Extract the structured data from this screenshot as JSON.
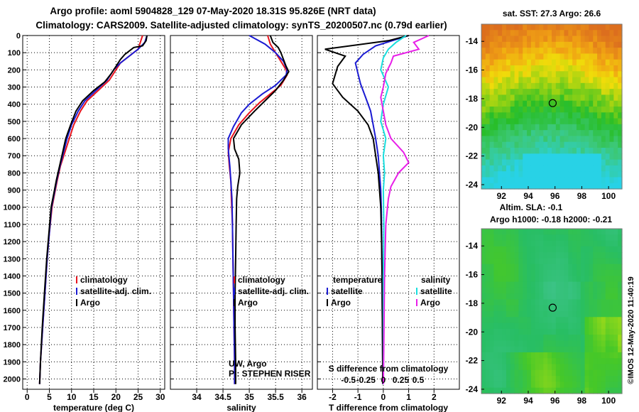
{
  "title_line1": "Argo profile: aoml 5904828_129 07-May-2020 18.31S 95.826E (NRT data)",
  "title_line2": "Climatology: CARS2009. Satellite-adjusted climatology: synTS_20200507.nc (0.79d earlier)",
  "colors": {
    "climatology": "#e8141e",
    "satellite": "#1a1ad2",
    "argo": "#000000",
    "sal_satellite": "#19dede",
    "sal_argo": "#e81ee8",
    "border": "#7a7a7a"
  },
  "chart_data": [
    {
      "type": "line",
      "xlabel": "temperature (deg C)",
      "xlim": [
        -1,
        31
      ],
      "ylim": [
        2060,
        0
      ],
      "xticks": [
        "0",
        "5",
        "10",
        "15",
        "20",
        "25",
        "30"
      ],
      "yticks": [
        "0",
        "100",
        "200",
        "300",
        "400",
        "500",
        "600",
        "700",
        "800",
        "900",
        "1000",
        "1100",
        "1200",
        "1300",
        "1400",
        "1500",
        "1600",
        "1700",
        "1800",
        "1900",
        "2000"
      ],
      "legend": [
        "climatology",
        "satellite-adj. clim.",
        "Argo"
      ],
      "series": [
        {
          "key": "climatology",
          "values": [
            [
              26,
              0
            ],
            [
              25.5,
              40
            ],
            [
              25,
              80
            ],
            [
              23,
              120
            ],
            [
              21,
              160
            ],
            [
              20,
              200
            ],
            [
              18.5,
              260
            ],
            [
              16,
              320
            ],
            [
              13.5,
              380
            ],
            [
              12,
              440
            ],
            [
              10.5,
              520
            ],
            [
              9.5,
              600
            ],
            [
              8.5,
              680
            ],
            [
              7.5,
              760
            ],
            [
              6.8,
              840
            ],
            [
              6.2,
              920
            ],
            [
              5.6,
              1000
            ],
            [
              5,
              1150
            ],
            [
              4.5,
              1300
            ],
            [
              4,
              1500
            ],
            [
              3.5,
              1700
            ],
            [
              3,
              1900
            ],
            [
              2.8,
              2030
            ]
          ]
        },
        {
          "key": "satellite",
          "values": [
            [
              27,
              0
            ],
            [
              26.5,
              40
            ],
            [
              25,
              80
            ],
            [
              23,
              120
            ],
            [
              21,
              160
            ],
            [
              19.5,
              200
            ],
            [
              18,
              260
            ],
            [
              15.5,
              320
            ],
            [
              13,
              380
            ],
            [
              11.5,
              440
            ],
            [
              10,
              520
            ],
            [
              9,
              600
            ],
            [
              8.2,
              680
            ],
            [
              7.4,
              760
            ],
            [
              6.7,
              840
            ],
            [
              6.1,
              920
            ],
            [
              5.5,
              1000
            ],
            [
              5,
              1150
            ],
            [
              4.5,
              1300
            ],
            [
              4,
              1500
            ],
            [
              3.5,
              1700
            ],
            [
              3,
              1900
            ],
            [
              2.8,
              2030
            ]
          ]
        },
        {
          "key": "argo",
          "values": [
            [
              27,
              0
            ],
            [
              26.8,
              30
            ],
            [
              26,
              60
            ],
            [
              24,
              70
            ],
            [
              23,
              90
            ],
            [
              22,
              110
            ],
            [
              21,
              140
            ],
            [
              20,
              180
            ],
            [
              19,
              220
            ],
            [
              17.5,
              270
            ],
            [
              15,
              320
            ],
            [
              12.5,
              380
            ],
            [
              11,
              440
            ],
            [
              9.8,
              520
            ],
            [
              8.7,
              600
            ],
            [
              8,
              680
            ],
            [
              7.3,
              760
            ],
            [
              6.6,
              840
            ],
            [
              6,
              920
            ],
            [
              5.4,
              1000
            ],
            [
              4.9,
              1150
            ],
            [
              4.4,
              1300
            ],
            [
              3.9,
              1500
            ],
            [
              3.4,
              1700
            ],
            [
              3,
              1900
            ],
            [
              2.8,
              2030
            ]
          ]
        }
      ]
    },
    {
      "type": "line",
      "xlabel": "salinity",
      "xlim": [
        33.5,
        36.2
      ],
      "ylim": [
        2060,
        0
      ],
      "xticks": [
        "34",
        "34.5",
        "35",
        "35.5",
        "36"
      ],
      "legend": [
        "climatology",
        "satellite-adj. clim.",
        "Argo"
      ],
      "series": [
        {
          "key": "climatology",
          "values": [
            [
              35.35,
              0
            ],
            [
              35.4,
              50
            ],
            [
              35.5,
              100
            ],
            [
              35.6,
              150
            ],
            [
              35.7,
              200
            ],
            [
              35.72,
              230
            ],
            [
              35.6,
              290
            ],
            [
              35.4,
              340
            ],
            [
              35.2,
              390
            ],
            [
              35.0,
              450
            ],
            [
              34.8,
              520
            ],
            [
              34.65,
              600
            ],
            [
              34.6,
              680
            ],
            [
              34.62,
              760
            ],
            [
              34.65,
              850
            ],
            [
              34.66,
              950
            ],
            [
              34.68,
              1100
            ],
            [
              34.69,
              1300
            ],
            [
              34.7,
              1500
            ],
            [
              34.71,
              1700
            ],
            [
              34.72,
              1900
            ],
            [
              34.72,
              2030
            ]
          ]
        },
        {
          "key": "satellite",
          "values": [
            [
              35.0,
              0
            ],
            [
              35.3,
              50
            ],
            [
              35.5,
              100
            ],
            [
              35.65,
              150
            ],
            [
              35.72,
              200
            ],
            [
              35.7,
              230
            ],
            [
              35.5,
              290
            ],
            [
              35.25,
              340
            ],
            [
              35.0,
              400
            ],
            [
              34.85,
              450
            ],
            [
              34.7,
              530
            ],
            [
              34.6,
              600
            ],
            [
              34.6,
              660
            ],
            [
              34.63,
              760
            ],
            [
              34.65,
              850
            ],
            [
              34.67,
              950
            ],
            [
              34.68,
              1100
            ],
            [
              34.69,
              1300
            ],
            [
              34.7,
              1500
            ],
            [
              34.71,
              1700
            ],
            [
              34.72,
              1900
            ],
            [
              34.72,
              2030
            ]
          ]
        },
        {
          "key": "argo",
          "values": [
            [
              35.4,
              0
            ],
            [
              35.45,
              40
            ],
            [
              35.55,
              70
            ],
            [
              35.6,
              100
            ],
            [
              35.65,
              140
            ],
            [
              35.7,
              180
            ],
            [
              35.75,
              210
            ],
            [
              35.65,
              260
            ],
            [
              35.5,
              320
            ],
            [
              35.3,
              380
            ],
            [
              35.1,
              440
            ],
            [
              34.85,
              520
            ],
            [
              34.7,
              600
            ],
            [
              34.72,
              660
            ],
            [
              34.8,
              720
            ],
            [
              34.82,
              800
            ],
            [
              34.78,
              880
            ],
            [
              34.76,
              950
            ],
            [
              34.75,
              1100
            ],
            [
              34.74,
              1300
            ],
            [
              34.73,
              1500
            ],
            [
              34.73,
              1700
            ],
            [
              34.74,
              1900
            ],
            [
              34.74,
              2030
            ]
          ]
        }
      ],
      "credits": [
        "UW, Argo",
        "PI: STEPHEN RISER"
      ]
    },
    {
      "type": "line",
      "xlabel": "T difference from climatology",
      "s_axis_label": "S difference from climatology",
      "xlim": [
        -2.6,
        3.0
      ],
      "ylim": [
        2060,
        0
      ],
      "xticks": [
        "-2",
        "-1",
        "0",
        "1",
        "2"
      ],
      "s_ticks": [
        "-0.5",
        "-0.25",
        "0",
        "0.25",
        "0.5"
      ],
      "legend_temperature": [
        "temperature",
        "satellite",
        "Argo"
      ],
      "legend_salinity": [
        "salinity",
        "satellite",
        "Argo"
      ],
      "series": [
        {
          "key": "satellite",
          "values": [
            [
              1.0,
              0
            ],
            [
              -0.3,
              60
            ],
            [
              -0.8,
              110
            ],
            [
              -1.1,
              160
            ],
            [
              -1.0,
              220
            ],
            [
              -0.9,
              280
            ],
            [
              -0.7,
              360
            ],
            [
              -0.5,
              440
            ],
            [
              -0.4,
              520
            ],
            [
              -0.3,
              600
            ],
            [
              -0.2,
              700
            ],
            [
              -0.15,
              800
            ],
            [
              -0.1,
              900
            ],
            [
              -0.08,
              1000
            ],
            [
              -0.06,
              1200
            ],
            [
              -0.05,
              1400
            ],
            [
              -0.04,
              1600
            ],
            [
              -0.03,
              1800
            ],
            [
              -0.02,
              2030
            ]
          ]
        },
        {
          "key": "argo",
          "values": [
            [
              1.0,
              0
            ],
            [
              0.2,
              30
            ],
            [
              -2.3,
              80
            ],
            [
              -1.5,
              120
            ],
            [
              -1.8,
              180
            ],
            [
              -2.0,
              280
            ],
            [
              -1.6,
              360
            ],
            [
              -1.0,
              440
            ],
            [
              -0.6,
              520
            ],
            [
              -0.4,
              600
            ],
            [
              -0.3,
              700
            ],
            [
              -0.2,
              800
            ],
            [
              -0.15,
              900
            ],
            [
              -0.1,
              1000
            ],
            [
              -0.07,
              1200
            ],
            [
              -0.05,
              1400
            ],
            [
              -0.04,
              1600
            ],
            [
              -0.03,
              1800
            ],
            [
              -0.02,
              2030
            ]
          ]
        },
        {
          "key": "sal_satellite",
          "values": [
            [
              0.9,
              0
            ],
            [
              0.5,
              40
            ],
            [
              0.2,
              80
            ],
            [
              0.0,
              130
            ],
            [
              -0.1,
              200
            ],
            [
              0.2,
              300
            ],
            [
              0.0,
              400
            ],
            [
              -0.1,
              500
            ],
            [
              0.1,
              600
            ],
            [
              0.0,
              700
            ],
            [
              0.05,
              800
            ],
            [
              0.0,
              900
            ],
            [
              0.02,
              1100
            ],
            [
              0.0,
              1400
            ],
            [
              0.01,
              1800
            ],
            [
              0.0,
              2030
            ]
          ]
        },
        {
          "key": "sal_argo",
          "values": [
            [
              1.8,
              0
            ],
            [
              1.2,
              40
            ],
            [
              1.4,
              80
            ],
            [
              0.4,
              120
            ],
            [
              0.3,
              160
            ],
            [
              0.1,
              220
            ],
            [
              0.0,
              300
            ],
            [
              -0.1,
              360
            ],
            [
              0.0,
              440
            ],
            [
              0.1,
              520
            ],
            [
              0.3,
              600
            ],
            [
              0.8,
              680
            ],
            [
              1.0,
              740
            ],
            [
              0.6,
              800
            ],
            [
              0.3,
              880
            ],
            [
              0.2,
              950
            ],
            [
              0.1,
              1100
            ],
            [
              0.05,
              1400
            ],
            [
              0.02,
              1800
            ],
            [
              0.0,
              2030
            ]
          ]
        }
      ]
    },
    {
      "type": "heatmap",
      "title": "sat. SST: 27.3 Argo: 26.6",
      "xlim": [
        90.5,
        101
      ],
      "ylim": [
        -24.3,
        -12.8
      ],
      "xticks": [
        "92",
        "94",
        "96",
        "98",
        "100"
      ],
      "yticks": [
        "-14",
        "-16",
        "-18",
        "-20",
        "-22",
        "-24"
      ],
      "marker": [
        95.826,
        -18.31
      ]
    },
    {
      "type": "heatmap",
      "title": "Altim. SLA: -0.1",
      "title2": "Argo h1000: -0.18 h2000: -0.21",
      "xlim": [
        90.5,
        101
      ],
      "ylim": [
        -24.3,
        -12.8
      ],
      "xticks": [
        "92",
        "94",
        "96",
        "98",
        "100"
      ],
      "yticks": [
        "-14",
        "-16",
        "-18",
        "-20",
        "-22",
        "-24"
      ],
      "marker": [
        95.826,
        -18.31
      ]
    }
  ],
  "footer": "©IMOS 12-May-2020 11:40:19"
}
